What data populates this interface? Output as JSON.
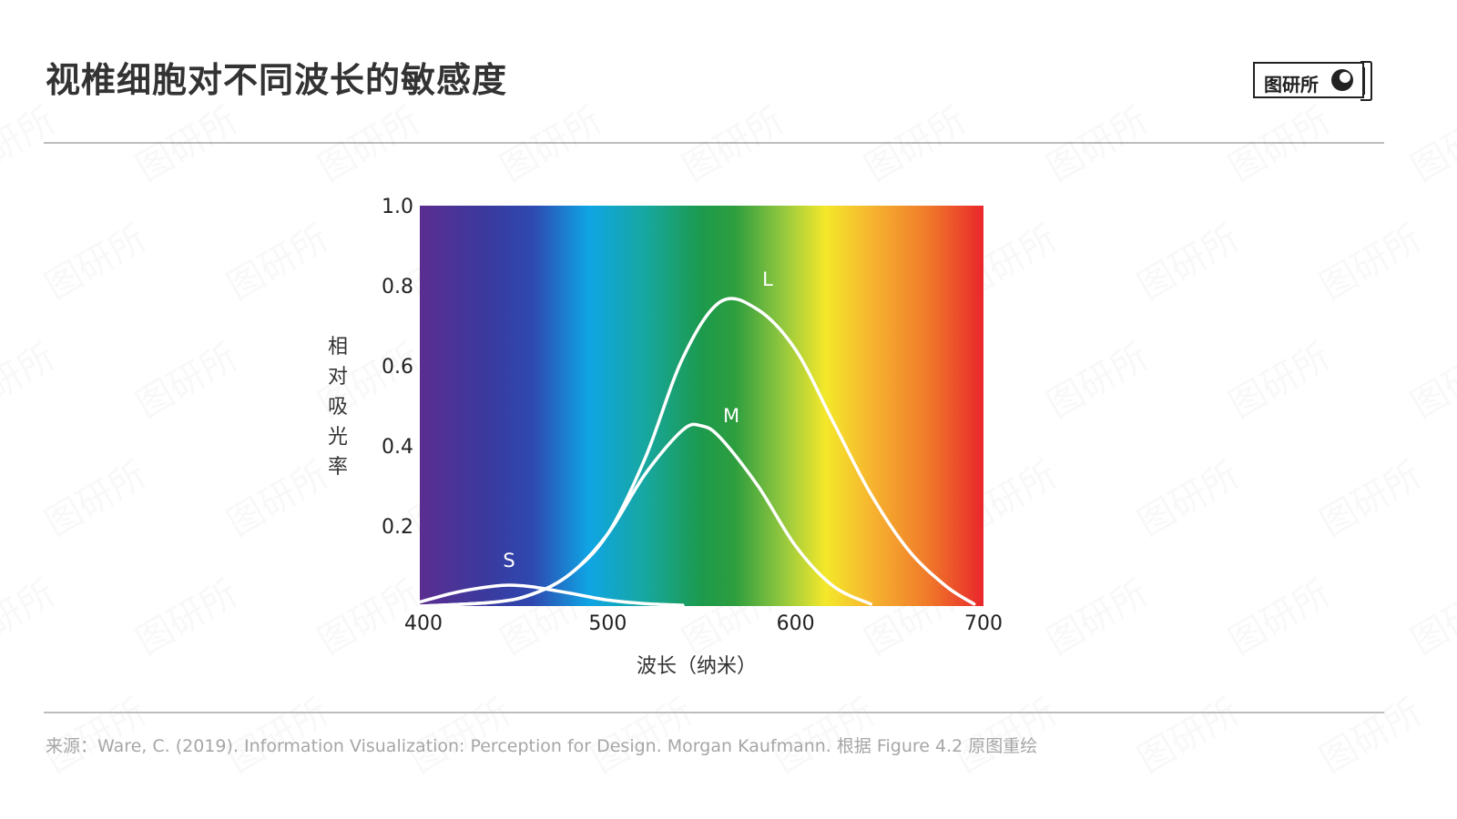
{
  "header": {
    "title": "视椎细胞对不同波长的敏感度",
    "logo_text": "图研所"
  },
  "footer": {
    "source": "来源：Ware, C. (2019). Information Visualization: Perception for Design. Morgan Kaufmann. 根据 Figure 4.2 原图重绘"
  },
  "colors": {
    "spectrum": [
      "#5b2d90",
      "#3a3a9e",
      "#2e48b0",
      "#0fa5e4",
      "#17a7a0",
      "#1c9a4c",
      "#2e9e3e",
      "#8ec63f",
      "#f4e82a",
      "#f6b52f",
      "#f07b2a",
      "#e9262b"
    ],
    "curve": "#ffffff",
    "text": "#333333",
    "source": "#a6a6a6",
    "rule": "#bdbdbd"
  },
  "chart_data": {
    "type": "line",
    "title": "",
    "xlabel": "波长（纳米）",
    "ylabel": "相对吸光率",
    "xlim": [
      400,
      700
    ],
    "ylim": [
      0,
      1.0
    ],
    "x_ticks": [
      400,
      500,
      600,
      700
    ],
    "y_ticks": [
      0.2,
      0.4,
      0.6,
      0.8,
      1.0
    ],
    "x_tick_labels": [
      "400",
      "500",
      "600",
      "700"
    ],
    "y_tick_labels": [
      "0.2",
      "0.4",
      "0.6",
      "0.8",
      "1.0"
    ],
    "grid": false,
    "series": [
      {
        "name": "S",
        "x": [
          400,
          420,
          440,
          450,
          460,
          480,
          500,
          520,
          540
        ],
        "y": [
          0.01,
          0.035,
          0.05,
          0.052,
          0.048,
          0.032,
          0.015,
          0.006,
          0.002
        ]
      },
      {
        "name": "M",
        "x": [
          400,
          440,
          460,
          480,
          500,
          520,
          540,
          550,
          560,
          580,
          600,
          620,
          640
        ],
        "y": [
          0.0,
          0.01,
          0.03,
          0.08,
          0.18,
          0.33,
          0.44,
          0.45,
          0.42,
          0.3,
          0.15,
          0.05,
          0.005
        ]
      },
      {
        "name": "L",
        "x": [
          400,
          440,
          460,
          480,
          500,
          520,
          540,
          560,
          580,
          600,
          620,
          640,
          660,
          680,
          695
        ],
        "y": [
          0.0,
          0.01,
          0.03,
          0.08,
          0.18,
          0.37,
          0.62,
          0.76,
          0.74,
          0.64,
          0.46,
          0.28,
          0.14,
          0.05,
          0.005
        ]
      }
    ]
  }
}
